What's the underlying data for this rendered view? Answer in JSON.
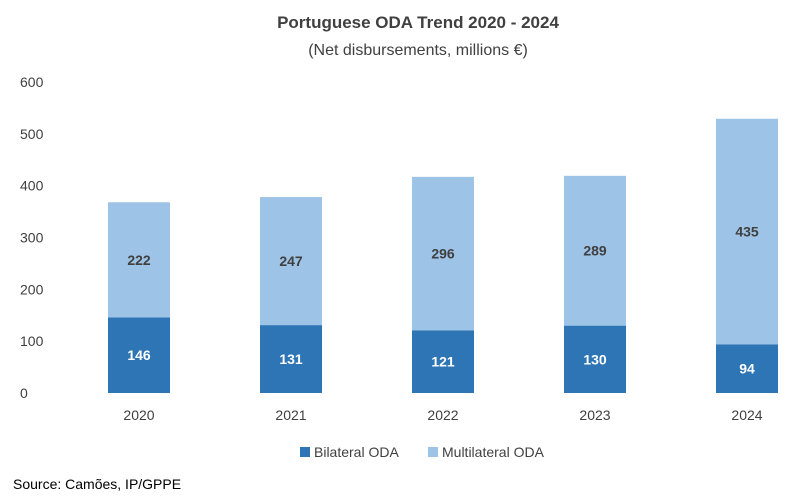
{
  "chart_data": {
    "type": "bar",
    "stacked": true,
    "title": "Portuguese ODA Trend 2020 - 2024",
    "subtitle": "(Net disbursements, millions €)",
    "categories": [
      "2020",
      "2021",
      "2022",
      "2023",
      "2024"
    ],
    "series": [
      {
        "name": "Bilateral ODA",
        "values": [
          146,
          131,
          121,
          130,
          94
        ],
        "color": "#2E75B6",
        "label_color": "#ffffff"
      },
      {
        "name": "Multilateral ODA",
        "values": [
          222,
          247,
          296,
          289,
          435
        ],
        "color": "#9DC3E6",
        "label_color": "#404040"
      }
    ],
    "ylim": [
      0,
      600
    ],
    "yticks": [
      "0",
      "100",
      "200",
      "300",
      "400",
      "500",
      "600"
    ],
    "grid": false,
    "legend_position": "bottom"
  },
  "source": "Source: Camões, IP/GPPE"
}
